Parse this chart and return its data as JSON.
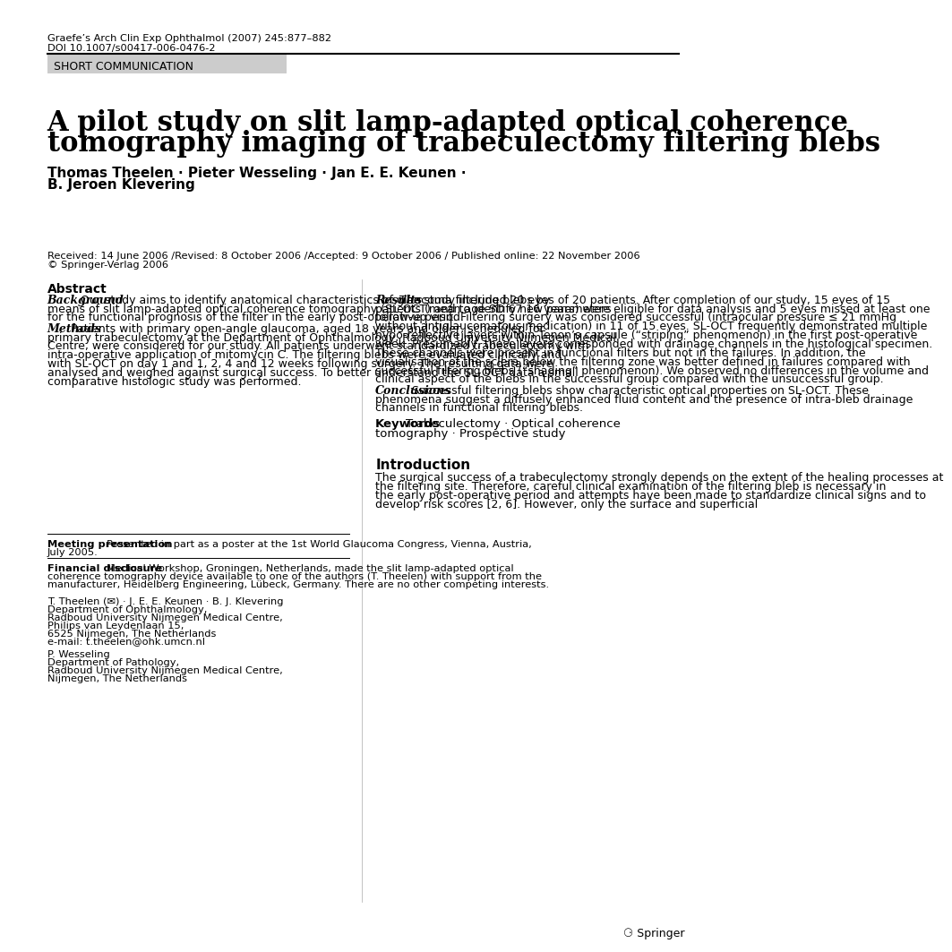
{
  "journal_line1": "Graefe’s Arch Clin Exp Ophthalmol (2007) 245:877–882",
  "journal_line2": "DOI 10.1007/s00417-006-0476-2",
  "short_comm_label": "SHORT COMMUNICATION",
  "title_line1": "A pilot study on slit lamp-adapted optical coherence",
  "title_line2": "tomography imaging of trabeculectomy filtering blebs",
  "authors_line1": "Thomas Theelen · Pieter Wesseling · Jan E. E. Keunen ·",
  "authors_line2": "B. Jeroen Klevering",
  "received": "Received: 14 June 2006 /Revised: 8 October 2006 /Accepted: 9 October 2006 / Published online: 22 November 2006",
  "copyright": "© Springer-Verlag 2006",
  "abstract_title": "Abstract",
  "background_label": "Background",
  "background_text": "Our study aims to identify anatomical characteristics of glaucoma filtering blebs by means of slit lamp-adapted optical coherence tomography (SL-OCT) and to identify new parameters for the functional prognosis of the filter in the early post-operative period.",
  "methods_label": "Methods",
  "methods_text": "Patients with primary open-angle glaucoma, aged 18 years and older, scheduled for primary trabeculectomy at the Department of Ophthalmology, Radboud University Nijmegen Medical Centre, were considered for our study. All patients underwent standardized trabeculectomy with intra-operative application of mitomycin C. The filtering blebs were evaluated clinically and with SL-OCT on day 1 and 1, 2, 4 and 12 weeks following surgery. The resulting data were analysed and weighed against surgical success. To better understand the SL-OCT data a small comparative histologic study was performed.",
  "results_label": "Results",
  "results_text": "The study included 20 eyes of 20 patients. After completion of our study, 15 eyes of 15 patients (mean age SD 67  16 years) were eligible for data analysis and 5 eyes missed at least one follow-up visit. Filtering surgery was considered successful (intraocular pressure ≤ 21 mmHg without antiglaucomatous medication) in 11 of 15 eyes. SL-OCT frequently demonstrated multiple hypo-reflective layers within Tenon’s capsule (“striping” phenomenon) in the first post-operative week. Presumably, these layers corresponded with drainage channels in the histological specimen. These channels were present in functional filters but not in the failures. In addition, the visualisation of the sclera below the filtering zone was better defined in failures compared with successful filtering blebs (“shading” phenomenon). We observed no differences in the volume and clinical aspect of the blebs in the successful group compared with the unsuccessful group.",
  "conclusions_label": "Conclusions",
  "conclusions_text": "Successful filtering blebs show characteristic optical properties on SL-OCT. These phenomena suggest a diffusely enhanced fluid content and the presence of intra-bleb drainage channels in functional filtering blebs.",
  "keywords_label": "Keywords",
  "keywords_text1": "Trabeculectomy · Optical coherence",
  "keywords_text2": "tomography · Prospective study",
  "meeting_label": "Meeting presentation",
  "meeting_text": "Presented in part as a poster at the 1st World Glaucoma Congress, Vienna, Austria, July 2005.",
  "financial_label": "Financial disclosure",
  "financial_text": "Medical Workshop, Groningen, Netherlands, made the slit lamp-adapted optical coherence tomography device available to one of the authors (T. Theelen) with support from the manufacturer, Heidelberg Engineering, Lübeck, Germany. There are no other competing interests.",
  "address1_name": "T. Theelen (✉) · J. E. E. Keunen · B. J. Klevering",
  "address1_dept": "Department of Ophthalmology,",
  "address1_inst": "Radboud University Nijmegen Medical Centre,",
  "address1_street": "Philips van Leydenlaan 15,",
  "address1_city": "6525 Nijmegen, The Netherlands",
  "address1_email": "e-mail: t.theelen@ohk.umcn.nl",
  "address2_name": "P. Wesseling",
  "address2_dept": "Department of Pathology,",
  "address2_inst": "Radboud University Nijmegen Medical Centre,",
  "address2_city": "Nijmegen, The Netherlands",
  "intro_title": "Introduction",
  "intro_text": "The surgical success of a trabeculectomy strongly depends on the extent of the healing processes at the filtering site. Therefore, careful clinical examination of the filtering bleb is necessary in the early post-operative period and attempts have been made to standardize clinical signs and to develop risk scores [2, 6]. However, only the surface and superficial",
  "springer_logo": "⚆ Springer",
  "bg_color": "#ffffff",
  "text_color": "#000000",
  "short_comm_bg": "#cccccc",
  "line_color": "#000000"
}
